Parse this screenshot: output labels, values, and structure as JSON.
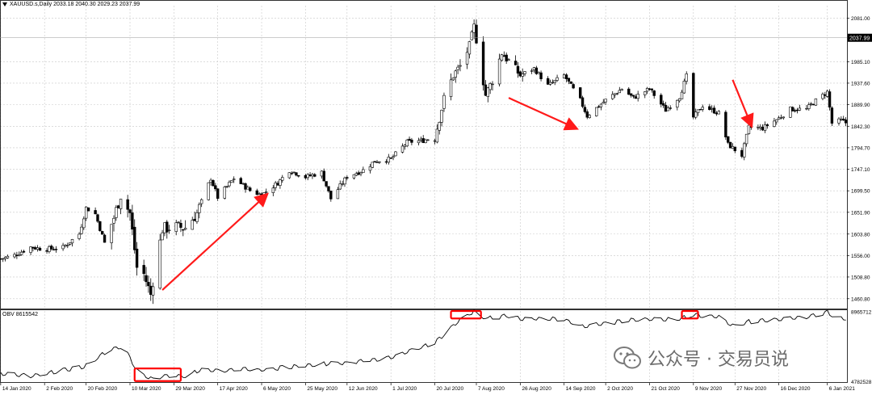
{
  "header": {
    "symbol": "XAUUSD.s,Daily",
    "ohlc": "2033.18 2040.30 2029.23 2037.99"
  },
  "indicator": {
    "label": "OBV 8615542"
  },
  "watermark": {
    "text": "公众号 · 交易员说",
    "icon": "wechat-icon"
  },
  "colors": {
    "candle": "#000000",
    "grid": "#c8c8c8",
    "arrow": "#ff1a1a",
    "highlight_box": "#ff0000",
    "current_price_bg": "#000000",
    "current_price_fg": "#ffffff"
  },
  "chart_data": [
    {
      "type": "candlestick",
      "title": "XAUUSD.s,Daily",
      "ylim": [
        1439,
        2109
      ],
      "y_ticks": [
        2081.0,
        1985.1,
        1937.6,
        1889.9,
        1842.3,
        1794.7,
        1747.1,
        1699.5,
        1651.9,
        1603.8,
        1556.0,
        1508.8,
        1460.8
      ],
      "current_price": 2037.99,
      "current_price_label": "2037.99",
      "grid": true,
      "x_tick_labels": [
        "14 Jan 2020",
        "2 Feb 2020",
        "20 Feb 2020",
        "10 Mar 2020",
        "29 Mar 2020",
        "17 Apr 2020",
        "6 May 2020",
        "25 May 2020",
        "12 Jun 2020",
        "1 Jul 2020",
        "20 Jul 2020",
        "7 Aug 2020",
        "26 Aug 2020",
        "14 Sep 2020",
        "2 Oct 2020",
        "21 Oct 2020",
        "9 Nov 2020",
        "27 Nov 2020",
        "16 Dec 2020",
        "6 Jan 2021"
      ],
      "close_path": [
        [
          "14 Jan 2020",
          1549
        ],
        [
          "20 Jan 2020",
          1557
        ],
        [
          "27 Jan 2020",
          1575
        ],
        [
          "2 Feb 2020",
          1570
        ],
        [
          "10 Feb 2020",
          1574
        ],
        [
          "17 Feb 2020",
          1604
        ],
        [
          "20 Feb 2020",
          1662
        ],
        [
          "24 Feb 2020",
          1648
        ],
        [
          "28 Feb 2020",
          1584
        ],
        [
          "3 Mar 2020",
          1640
        ],
        [
          "6 Mar 2020",
          1690
        ],
        [
          "10 Mar 2020",
          1650
        ],
        [
          "13 Mar 2020",
          1530
        ],
        [
          "16 Mar 2020",
          1515
        ],
        [
          "19 Mar 2020",
          1470
        ],
        [
          "20 Mar 2020",
          1500
        ],
        [
          "24 Mar 2020",
          1615
        ],
        [
          "29 Mar 2020",
          1620
        ],
        [
          "3 Apr 2020",
          1618
        ],
        [
          "8 Apr 2020",
          1650
        ],
        [
          "14 Apr 2020",
          1727
        ],
        [
          "17 Apr 2020",
          1685
        ],
        [
          "24 Apr 2020",
          1727
        ],
        [
          "1 May 2020",
          1700
        ],
        [
          "6 May 2020",
          1690
        ],
        [
          "13 May 2020",
          1717
        ],
        [
          "18 May 2020",
          1745
        ],
        [
          "25 May 2020",
          1730
        ],
        [
          "1 Jun 2020",
          1740
        ],
        [
          "5 Jun 2020",
          1682
        ],
        [
          "12 Jun 2020",
          1731
        ],
        [
          "19 Jun 2020",
          1745
        ],
        [
          "24 Jun 2020",
          1765
        ],
        [
          "1 Jul 2020",
          1770
        ],
        [
          "8 Jul 2020",
          1807
        ],
        [
          "15 Jul 2020",
          1811
        ],
        [
          "20 Jul 2020",
          1818
        ],
        [
          "24 Jul 2020",
          1903
        ],
        [
          "28 Jul 2020",
          1955
        ],
        [
          "31 Jul 2020",
          1975
        ],
        [
          "4 Aug 2020",
          2019
        ],
        [
          "6 Aug 2020",
          2062
        ],
        [
          "7 Aug 2020",
          2035
        ],
        [
          "11 Aug 2020",
          1911
        ],
        [
          "14 Aug 2020",
          1944
        ],
        [
          "18 Aug 2020",
          2005
        ],
        [
          "26 Aug 2020",
          1955
        ],
        [
          "1 Sep 2020",
          1970
        ],
        [
          "7 Sep 2020",
          1932
        ],
        [
          "14 Sep 2020",
          1955
        ],
        [
          "21 Sep 2020",
          1900
        ],
        [
          "24 Sep 2020",
          1865
        ],
        [
          "2 Oct 2020",
          1900
        ],
        [
          "9 Oct 2020",
          1925
        ],
        [
          "14 Oct 2020",
          1905
        ],
        [
          "21 Oct 2020",
          1925
        ],
        [
          "28 Oct 2020",
          1878
        ],
        [
          "3 Nov 2020",
          1908
        ],
        [
          "6 Nov 2020",
          1953
        ],
        [
          "9 Nov 2020",
          1862
        ],
        [
          "13 Nov 2020",
          1888
        ],
        [
          "20 Nov 2020",
          1871
        ],
        [
          "24 Nov 2020",
          1802
        ],
        [
          "27 Nov 2020",
          1790
        ],
        [
          "30 Nov 2020",
          1778
        ],
        [
          "3 Dec 2020",
          1840
        ],
        [
          "9 Dec 2020",
          1838
        ],
        [
          "16 Dec 2020",
          1860
        ],
        [
          "21 Dec 2020",
          1880
        ],
        [
          "28 Dec 2020",
          1880
        ],
        [
          "31 Dec 2020",
          1895
        ],
        [
          "6 Jan 2021",
          1918
        ],
        [
          "8 Jan 2021",
          1849
        ],
        [
          "12 Jan 2021",
          1855
        ],
        [
          "14 Jan 2021",
          1850
        ]
      ],
      "annotations": [
        {
          "type": "arrow",
          "direction": "up-right",
          "from": [
            "24 Mar 2020",
            1480
          ],
          "to": [
            "8 May 2020",
            1690
          ]
        },
        {
          "type": "arrow",
          "direction": "down-right",
          "from": [
            "21 Aug 2020",
            1905
          ],
          "to": [
            "19 Sep 2020",
            1838
          ]
        },
        {
          "type": "arrow",
          "direction": "down-right",
          "from": [
            "26 Nov 2020",
            1945
          ],
          "to": [
            "4 Dec 2020",
            1845
          ]
        }
      ]
    },
    {
      "type": "line",
      "title": "OBV 8615542",
      "ylim": [
        4730000,
        9000000
      ],
      "y_ticks": [
        8965712,
        4782528
      ],
      "y_tick_labels": [
        "8965712",
        "4782528"
      ],
      "series": [
        {
          "values": [
            [
              "14 Jan 2020",
              5250000
            ],
            [
              "27 Jan 2020",
              5100000
            ],
            [
              "2 Feb 2020",
              5200000
            ],
            [
              "10 Feb 2020",
              5450000
            ],
            [
              "20 Feb 2020",
              5700000
            ],
            [
              "28 Feb 2020",
              6500000
            ],
            [
              "3 Mar 2020",
              6750000
            ],
            [
              "7 Mar 2020",
              6900000
            ],
            [
              "10 Mar 2020",
              6200000
            ],
            [
              "13 Mar 2020",
              5400000
            ],
            [
              "16 Mar 2020",
              5100000
            ],
            [
              "20 Mar 2020",
              4900000
            ],
            [
              "24 Mar 2020",
              5100000
            ],
            [
              "29 Mar 2020",
              5150000
            ],
            [
              "3 Apr 2020",
              5050000
            ],
            [
              "10 Apr 2020",
              5500000
            ],
            [
              "17 Apr 2020",
              5400000
            ],
            [
              "1 May 2020",
              5500000
            ],
            [
              "6 May 2020",
              5450000
            ],
            [
              "25 May 2020",
              5750000
            ],
            [
              "12 Jun 2020",
              5900000
            ],
            [
              "1 Jul 2020",
              6200000
            ],
            [
              "20 Jul 2020",
              7100000
            ],
            [
              "1 Aug 2020",
              8600000
            ],
            [
              "6 Aug 2020",
              8950000
            ],
            [
              "7 Aug 2020",
              8800000
            ],
            [
              "12 Aug 2020",
              8550000
            ],
            [
              "20 Aug 2020",
              8700000
            ],
            [
              "26 Aug 2020",
              8550000
            ],
            [
              "14 Sep 2020",
              8500000
            ],
            [
              "21 Sep 2020",
              8050000
            ],
            [
              "2 Oct 2020",
              8250000
            ],
            [
              "14 Oct 2020",
              8450000
            ],
            [
              "21 Oct 2020",
              8500000
            ],
            [
              "3 Nov 2020",
              8500000
            ],
            [
              "9 Nov 2020",
              8800000
            ],
            [
              "13 Nov 2020",
              8700000
            ],
            [
              "20 Nov 2020",
              8650000
            ],
            [
              "24 Nov 2020",
              8250000
            ],
            [
              "27 Nov 2020",
              8100000
            ],
            [
              "3 Dec 2020",
              8350000
            ],
            [
              "16 Dec 2020",
              8500000
            ],
            [
              "31 Dec 2020",
              8700000
            ],
            [
              "6 Jan 2021",
              8950000
            ],
            [
              "10 Jan 2021",
              8600000
            ],
            [
              "14 Jan 2021",
              8550000
            ]
          ]
        }
      ],
      "highlights": [
        {
          "from": "12 Mar 2020",
          "to": "1 Apr 2020",
          "ymin": 4790000,
          "ymax": 5550000
        },
        {
          "from": "27 Jul 2020",
          "to": "9 Aug 2020",
          "ymin": 8550000,
          "ymax": 9000000
        },
        {
          "from": "4 Nov 2020",
          "to": "11 Nov 2020",
          "ymin": 8550000,
          "ymax": 9000000
        }
      ]
    }
  ]
}
